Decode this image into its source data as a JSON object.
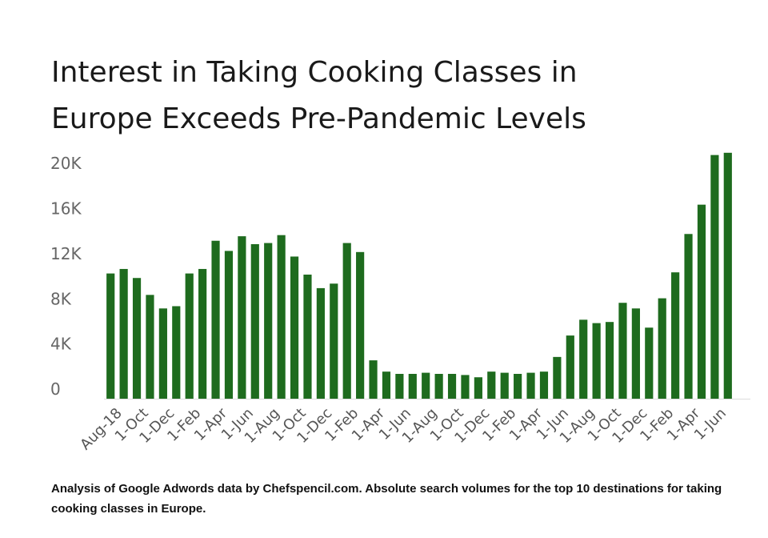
{
  "page": {
    "title_lines": [
      "Interest in Taking Cooking Classes in",
      "Europe Exceeds Pre-Pandemic Levels"
    ],
    "caption": "Analysis of Google Adwords data by Chefspencil.com. Absolute search volumes for the top 10 destinations for taking cooking classes in Europe."
  },
  "chart_data": {
    "type": "bar",
    "title": "Interest in Taking Cooking Classes in Europe Exceeds Pre-Pandemic Levels",
    "xlabel": "",
    "ylabel": "",
    "ylim": [
      0,
      22000
    ],
    "yticks": [
      0,
      4000,
      8000,
      12000,
      16000,
      20000
    ],
    "ytick_labels": [
      "0",
      "4K",
      "8K",
      "12K",
      "16K",
      "20K"
    ],
    "grid": false,
    "bar_color": "#1e6b1e",
    "categories": [
      "Aug-18",
      "",
      "1-Oct",
      "",
      "1-Dec",
      "",
      "1-Feb",
      "",
      "1-Apr",
      "",
      "1-Jun",
      "",
      "1-Aug",
      "",
      "1-Oct",
      "",
      "1-Dec",
      "",
      "1-Feb",
      "",
      "1-Apr",
      "",
      "1-Jun",
      "",
      "1-Aug",
      "",
      "1-Oct",
      "",
      "1-Dec",
      "",
      "1-Feb",
      "",
      "1-Apr",
      "",
      "1-Jun",
      "",
      "1-Aug",
      "",
      "1-Oct",
      "",
      "1-Dec",
      "",
      "1-Feb",
      "",
      "1-Apr",
      "",
      "1-Jun",
      ""
    ],
    "values": [
      11100,
      11500,
      10700,
      9200,
      8000,
      8200,
      11100,
      11500,
      14000,
      13100,
      14400,
      13700,
      13800,
      14500,
      12600,
      11000,
      9800,
      10200,
      13800,
      13000,
      3400,
      2400,
      2200,
      2200,
      2300,
      2200,
      2200,
      2100,
      1900,
      2400,
      2300,
      2200,
      2300,
      2400,
      3700,
      5600,
      7000,
      6700,
      6800,
      8500,
      8000,
      6300,
      8900,
      11200,
      14600,
      17200,
      21600,
      21800
    ]
  }
}
